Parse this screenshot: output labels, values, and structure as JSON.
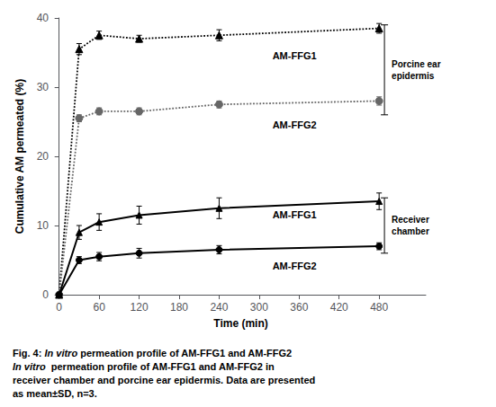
{
  "chart_data": {
    "type": "line",
    "xlabel": "Time (min)",
    "ylabel": "Cumulative AM permeated (%)",
    "x": [
      0,
      30,
      60,
      120,
      240,
      480
    ],
    "xlim": [
      -5,
      550
    ],
    "xticks": [
      0,
      60,
      120,
      180,
      240,
      300,
      360,
      420,
      480
    ],
    "ylim": [
      0,
      40
    ],
    "yticks": [
      0,
      10,
      20,
      30,
      40
    ],
    "grid": false,
    "series": [
      {
        "color": "#000000",
        "marker": "triangle",
        "line_style": "solid",
        "values": [
          0,
          9.0,
          10.5,
          11.5,
          12.5,
          13.5
        ],
        "errors": [
          0,
          1.0,
          1.2,
          1.3,
          1.5,
          1.2
        ]
      },
      {
        "color": "#000000",
        "marker": "circle",
        "line_style": "solid",
        "values": [
          0,
          5.0,
          5.5,
          6.0,
          6.5,
          7.0
        ],
        "errors": [
          0,
          0.5,
          0.6,
          0.7,
          0.6,
          0.5
        ]
      },
      {
        "color": "#000000",
        "marker": "triangle",
        "line_style": "dotted",
        "values": [
          0,
          35.5,
          37.5,
          37.0,
          37.5,
          38.5
        ],
        "errors": [
          0,
          0.8,
          0.6,
          0.5,
          0.8,
          0.7
        ]
      },
      {
        "color": "#666666",
        "marker": "circle",
        "line_style": "dotted",
        "values": [
          0,
          25.5,
          26.5,
          26.5,
          27.5,
          28.0
        ],
        "errors": [
          0,
          0.5,
          0.5,
          0.5,
          0.5,
          0.6
        ]
      }
    ],
    "annotations": [
      {
        "text": "AM-FFG1",
        "x": 320,
        "y": 34.5
      },
      {
        "text": "AM-FFG2",
        "x": 320,
        "y": 24.5
      },
      {
        "text": "AM-FFG1",
        "x": 320,
        "y": 11.5
      },
      {
        "text": "AM-FFG2",
        "x": 320,
        "y": 4.2
      }
    ],
    "brackets": [
      {
        "text": "Porcine ear\nepidermis",
        "x": 488,
        "y_range": [
          26.0,
          39.0
        ]
      },
      {
        "text": "Receiver\nchamber",
        "x": 488,
        "y_range": [
          6.0,
          14.0
        ]
      }
    ],
    "caption": [
      [
        {
          "text": "Fig. 4: "
        },
        {
          "text": "In vitro",
          "italic": true
        },
        {
          "text": " permeation profile of AM-FFG1 and AM-FFG2"
        }
      ],
      [
        {
          "text": "In vitro",
          "italic": true
        },
        {
          "text": "  permeation profile of AM-FFG1 and AM-FFG2 in\nreceiver chamber and porcine ear epidermis. Data are presented\nas mean±SD, n=3."
        }
      ]
    ]
  }
}
